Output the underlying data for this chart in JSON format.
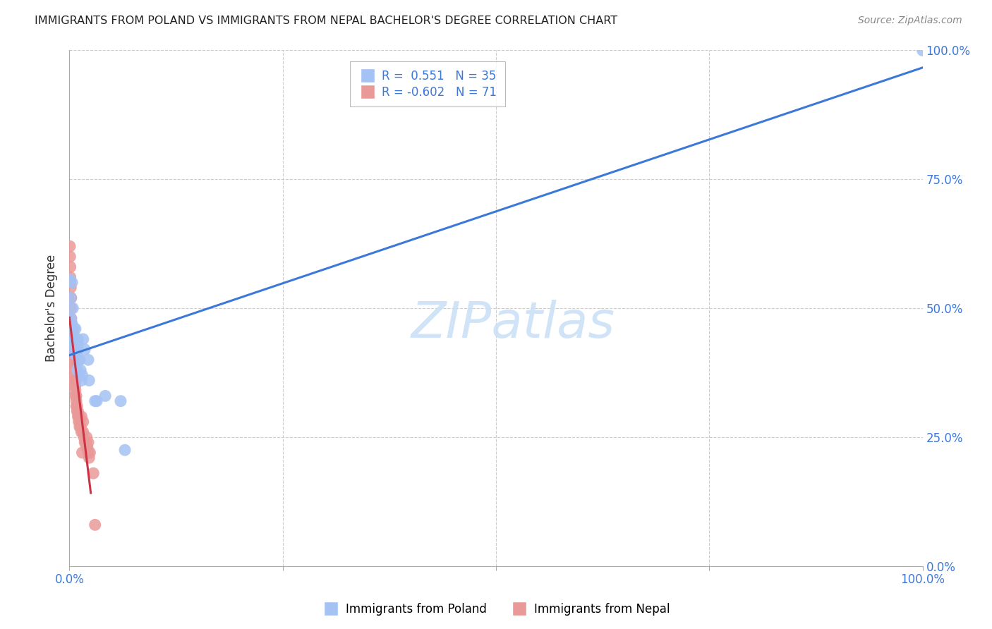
{
  "title": "IMMIGRANTS FROM POLAND VS IMMIGRANTS FROM NEPAL BACHELOR'S DEGREE CORRELATION CHART",
  "source": "Source: ZipAtlas.com",
  "ylabel": "Bachelor's Degree",
  "poland_color": "#a4c2f4",
  "nepal_color": "#ea9999",
  "poland_line_color": "#3c78d8",
  "nepal_line_color": "#cc3344",
  "poland_R": 0.551,
  "poland_N": 35,
  "nepal_R": -0.602,
  "nepal_N": 71,
  "watermark_text": "ZIPatlas",
  "background_color": "#ffffff",
  "legend_poland_label": "Immigrants from Poland",
  "legend_nepal_label": "Immigrants from Nepal",
  "xlim": [
    0.0,
    0.1
  ],
  "ylim": [
    0.0,
    1.0
  ],
  "poland_x": [
    0.0008,
    0.0015,
    0.002,
    0.003,
    0.003,
    0.004,
    0.004,
    0.005,
    0.005,
    0.005,
    0.006,
    0.006,
    0.007,
    0.007,
    0.008,
    0.008,
    0.009,
    0.009,
    0.01,
    0.01,
    0.011,
    0.012,
    0.013,
    0.014,
    0.015,
    0.016,
    0.018,
    0.022,
    0.023,
    0.03,
    0.032,
    0.042,
    0.06,
    0.065,
    1.0
  ],
  "poland_y": [
    0.555,
    0.52,
    0.48,
    0.55,
    0.47,
    0.44,
    0.5,
    0.44,
    0.46,
    0.42,
    0.43,
    0.44,
    0.41,
    0.46,
    0.44,
    0.41,
    0.38,
    0.43,
    0.44,
    0.42,
    0.4,
    0.4,
    0.38,
    0.36,
    0.37,
    0.44,
    0.42,
    0.4,
    0.36,
    0.32,
    0.32,
    0.33,
    0.32,
    0.225,
    1.0
  ],
  "nepal_x": [
    0.0005,
    0.0007,
    0.001,
    0.001,
    0.001,
    0.0015,
    0.0015,
    0.002,
    0.002,
    0.002,
    0.002,
    0.002,
    0.0025,
    0.0025,
    0.003,
    0.003,
    0.003,
    0.003,
    0.003,
    0.003,
    0.003,
    0.004,
    0.004,
    0.004,
    0.004,
    0.004,
    0.004,
    0.004,
    0.005,
    0.005,
    0.005,
    0.005,
    0.005,
    0.005,
    0.006,
    0.006,
    0.006,
    0.006,
    0.007,
    0.007,
    0.007,
    0.007,
    0.008,
    0.008,
    0.008,
    0.009,
    0.009,
    0.01,
    0.01,
    0.011,
    0.011,
    0.012,
    0.012,
    0.013,
    0.014,
    0.015,
    0.016,
    0.017,
    0.018,
    0.019,
    0.02,
    0.021,
    0.022,
    0.023,
    0.014,
    0.016,
    0.02,
    0.022,
    0.024,
    0.028,
    0.03
  ],
  "nepal_y": [
    0.62,
    0.6,
    0.58,
    0.56,
    0.55,
    0.54,
    0.52,
    0.52,
    0.5,
    0.48,
    0.47,
    0.45,
    0.46,
    0.44,
    0.46,
    0.45,
    0.44,
    0.44,
    0.43,
    0.43,
    0.42,
    0.44,
    0.42,
    0.42,
    0.41,
    0.4,
    0.4,
    0.39,
    0.41,
    0.4,
    0.4,
    0.39,
    0.38,
    0.38,
    0.37,
    0.36,
    0.36,
    0.35,
    0.36,
    0.35,
    0.34,
    0.33,
    0.33,
    0.32,
    0.31,
    0.31,
    0.3,
    0.3,
    0.29,
    0.29,
    0.28,
    0.28,
    0.27,
    0.27,
    0.26,
    0.22,
    0.26,
    0.25,
    0.24,
    0.24,
    0.23,
    0.23,
    0.22,
    0.21,
    0.29,
    0.28,
    0.25,
    0.24,
    0.22,
    0.18,
    0.08
  ]
}
